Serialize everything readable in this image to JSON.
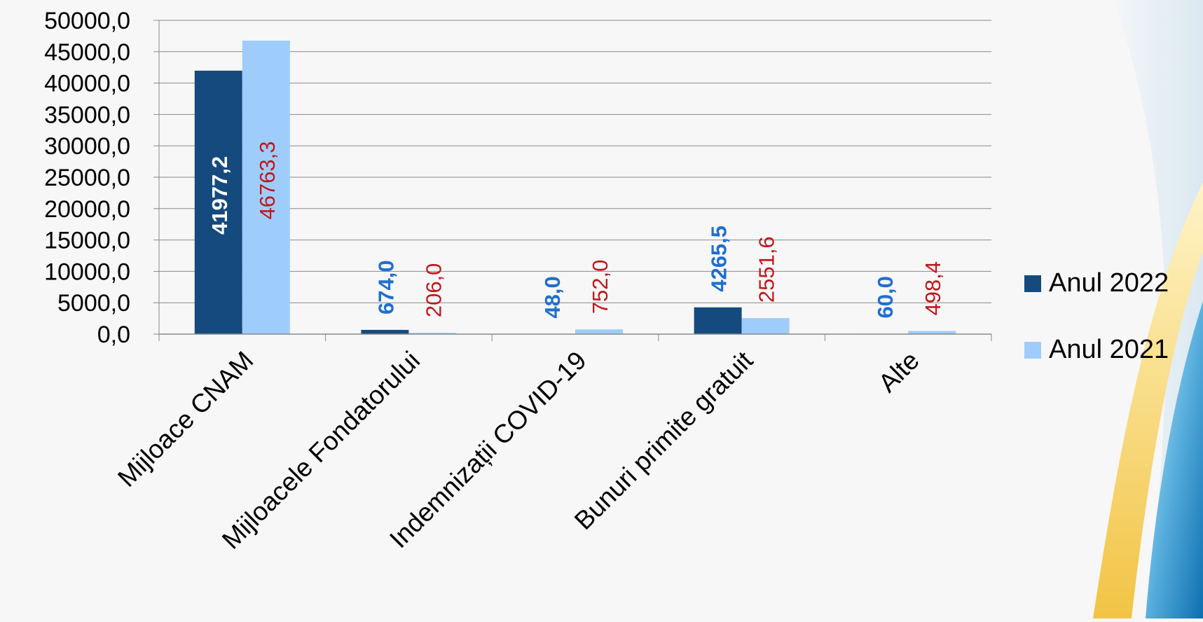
{
  "chart_data": {
    "type": "bar",
    "categories": [
      "Mijloace CNAM",
      "Mijloacele Fondatorului",
      "Indemnizații COVID-19",
      "Bunuri primite gratuit",
      "Alte"
    ],
    "series": [
      {
        "name": "Anul 2022",
        "color": "#154a7e",
        "label_color": "#1f6fd0",
        "values": [
          41977.2,
          674.0,
          48.0,
          4265.5,
          60.0
        ],
        "labels": [
          "41977,2",
          "674,0",
          "48,0",
          "4265,5",
          "60,0"
        ]
      },
      {
        "name": "Anul 2021",
        "color": "#9fcdfb",
        "label_color": "#c0161b",
        "values": [
          46763.3,
          206.0,
          752.0,
          2551.6,
          498.4
        ],
        "labels": [
          "46763,3",
          "206,0",
          "752,0",
          "2551,6",
          "498,4"
        ]
      }
    ],
    "y_ticks": [
      "0,0",
      "5000,0",
      "10000,0",
      "15000,0",
      "20000,0",
      "25000,0",
      "30000,0",
      "35000,0",
      "40000,0",
      "45000,0",
      "50000,0"
    ],
    "ylim": [
      0,
      50000
    ],
    "grid": true,
    "legend_position": "right",
    "xlabel": "",
    "ylabel": "",
    "title": ""
  }
}
